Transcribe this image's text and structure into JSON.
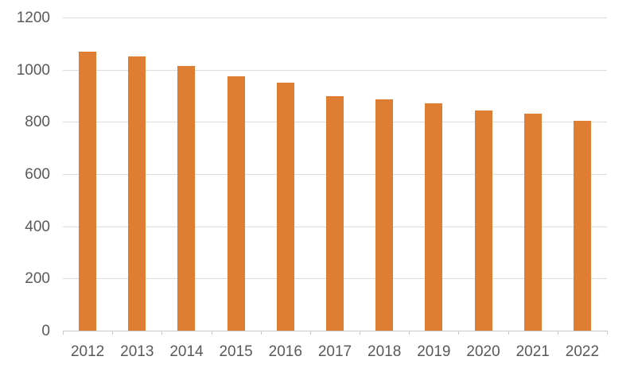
{
  "chart_data": {
    "type": "bar",
    "title": "",
    "xlabel": "",
    "ylabel": "",
    "categories": [
      "2012",
      "2013",
      "2014",
      "2015",
      "2016",
      "2017",
      "2018",
      "2019",
      "2020",
      "2021",
      "2022"
    ],
    "values": [
      1070,
      1050,
      1015,
      975,
      950,
      900,
      885,
      870,
      845,
      830,
      805
    ],
    "ylim": [
      0,
      1200
    ],
    "yticks": [
      0,
      200,
      400,
      600,
      800,
      1000,
      1200
    ],
    "grid": "horizontal-major",
    "legend": "none",
    "bar_color": "#DF7E32",
    "gridline_color": "#DCDCDC",
    "axis_color": "#C8C8C8",
    "label_color": "#595959"
  }
}
